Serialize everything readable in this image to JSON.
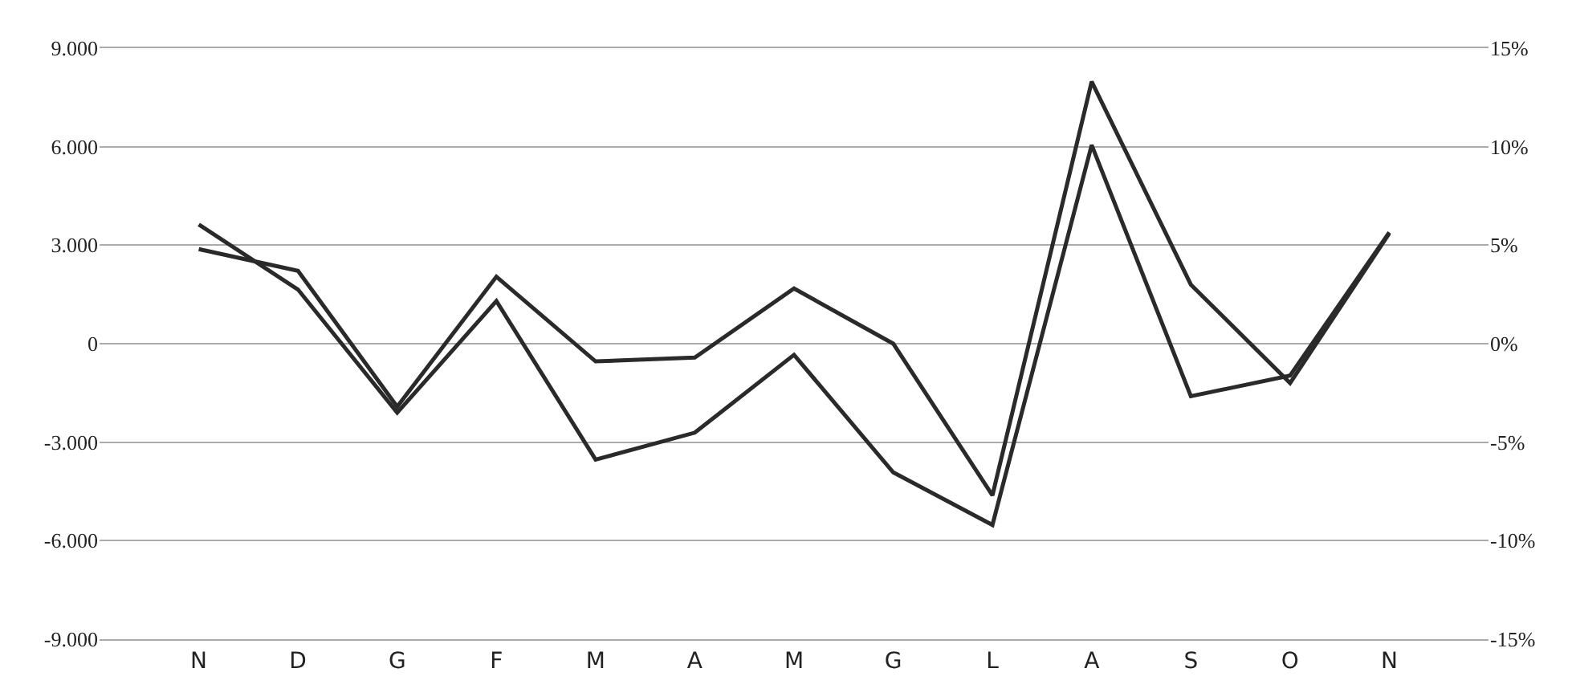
{
  "chart_data": {
    "type": "line",
    "categories": [
      "N",
      "D",
      "G",
      "F",
      "M",
      "A",
      "M",
      "G",
      "L",
      "A",
      "S",
      "O",
      "N"
    ],
    "series": [
      {
        "color": "#2a2a2a",
        "values": [
          3630,
          1650,
          -2100,
          1300,
          -3530,
          -2710,
          -340,
          -3920,
          -5520,
          6050,
          -1600,
          -970,
          3390
        ]
      },
      {
        "color": "#2a2a2a",
        "axis": "y2",
        "values": [
          4.8,
          3.7,
          -3.2,
          3.4,
          -0.9,
          -0.7,
          2.8,
          0,
          -7.7,
          13.3,
          3.0,
          -2.0,
          5.6
        ]
      }
    ],
    "ylim": [
      -9000,
      9000
    ],
    "yticks": [
      {
        "value": -9000,
        "label": "-9.000"
      },
      {
        "value": -6000,
        "label": "-6.000"
      },
      {
        "value": -3000,
        "label": "-3.000"
      },
      0,
      {
        "value": 3000,
        "label": "3.000"
      },
      {
        "value": 6000,
        "label": "6.000"
      },
      {
        "value": 9000,
        "label": "9.000"
      }
    ],
    "y2lim": [
      -15,
      15
    ],
    "y2ticks": [
      {
        "value": -15,
        "label": "-15%"
      },
      {
        "value": -10,
        "label": "-10%"
      },
      {
        "value": -5,
        "label": "-5%"
      },
      {
        "value": 0,
        "label": "0%"
      },
      {
        "value": 5,
        "label": "5%"
      },
      {
        "value": 10,
        "label": "10%"
      },
      {
        "value": 15,
        "label": "15%"
      }
    ],
    "grid": "y",
    "marker": "none",
    "line_style": "solid"
  }
}
